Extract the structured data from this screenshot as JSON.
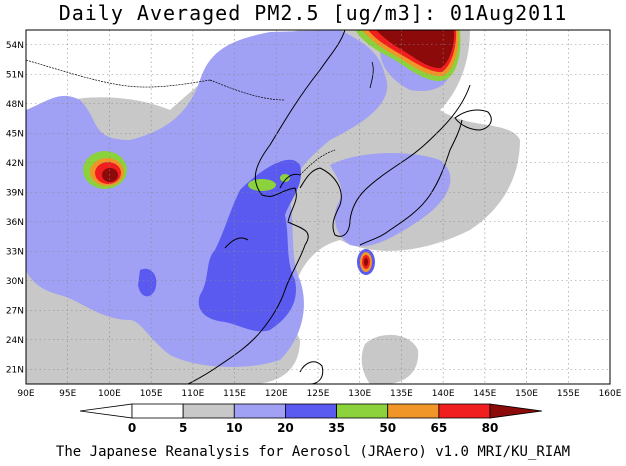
{
  "title": "Daily Averaged PM2.5 [ug/m3]: 01Aug2011",
  "credit": "The Japanese Reanalysis for Aerosol (JRAero) v1.0 MRI/KU_RIAM",
  "map": {
    "lon_min": 90,
    "lon_max": 160,
    "lat_min": 19.5,
    "lat_max": 55.5,
    "lon_ticks": [
      "90E",
      "95E",
      "100E",
      "105E",
      "110E",
      "115E",
      "120E",
      "125E",
      "130E",
      "135E",
      "140E",
      "145E",
      "150E",
      "155E",
      "160E"
    ],
    "lat_ticks": [
      "54N",
      "51N",
      "48N",
      "45N",
      "42N",
      "39N",
      "36N",
      "33N",
      "30N",
      "27N",
      "24N",
      "21N"
    ],
    "lat_tick_values": [
      54,
      51,
      48,
      45,
      42,
      39,
      36,
      33,
      30,
      27,
      24,
      21
    ],
    "grid": true
  },
  "colorbar": {
    "labels": [
      "0",
      "5",
      "10",
      "20",
      "35",
      "50",
      "65",
      "80"
    ],
    "colors": [
      "#ffffff",
      "#c8c8c8",
      "#a0a0f5",
      "#5a5af0",
      "#8cd23c",
      "#f09628",
      "#f01e1e",
      "#8c0a0a"
    ]
  }
}
